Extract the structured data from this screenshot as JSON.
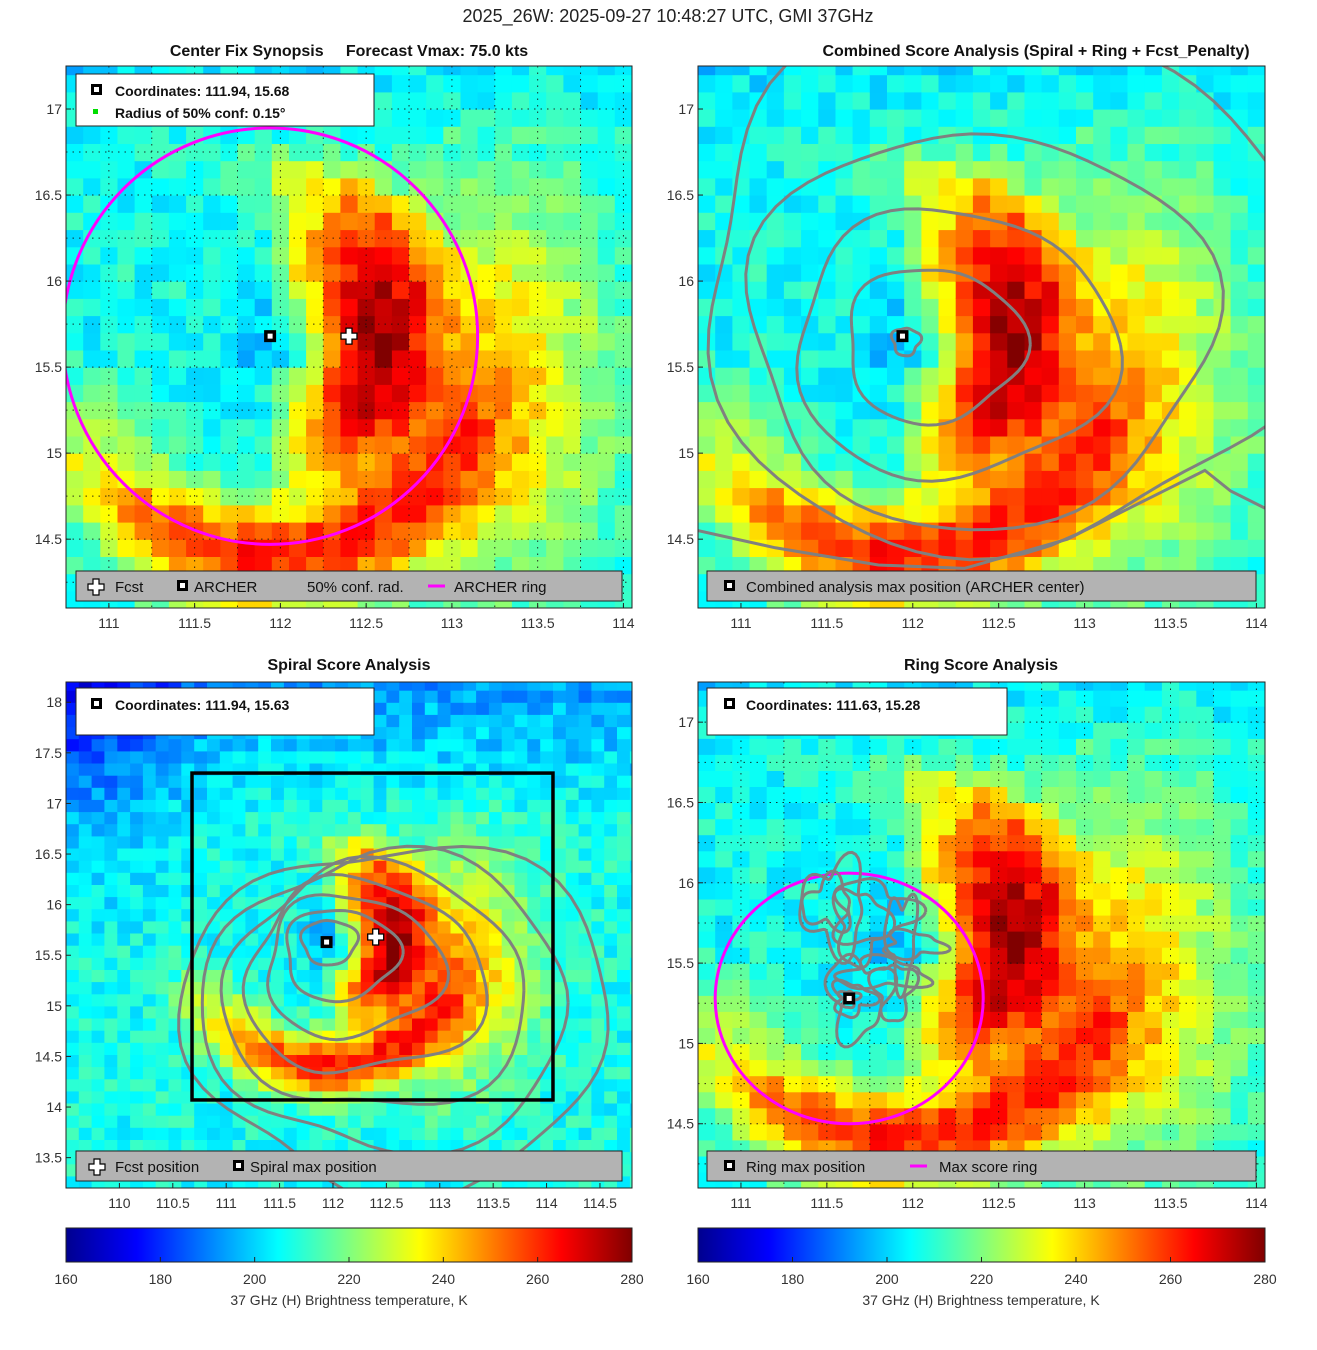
{
  "suptitle": "2025_26W: 2025-09-27 10:48:27 UTC, GMI 37GHz",
  "colors": {
    "magenta": "#ff00ff",
    "contour": "#808080",
    "legend_bg": "#b3b3b3",
    "grid": "#1a1a1a"
  },
  "colorbar": {
    "label": "37 GHz (H) Brightness temperature, K",
    "ticks": [
      "160",
      "180",
      "200",
      "220",
      "240",
      "260",
      "280"
    ],
    "min": 160,
    "max": 280
  },
  "chart_data": [
    {
      "type": "heatmap",
      "title": "Center Fix Synopsis     Forecast Vmax: 75.0 kts",
      "xlim": [
        110.75,
        114.05
      ],
      "ylim": [
        14.1,
        17.25
      ],
      "xticks": [
        "111",
        "111.5",
        "112",
        "112.5",
        "113",
        "113.5",
        "114"
      ],
      "yticks": [
        "14.5",
        "15",
        "15.5",
        "16",
        "16.5",
        "17"
      ],
      "grid": true,
      "info_lines": [
        "Coordinates: 111.94, 15.68",
        "Radius of 50% conf: 0.15°"
      ],
      "legend": [
        "Fcst",
        "ARCHER",
        "50% conf. rad.",
        "ARCHER ring"
      ],
      "archer_center": [
        111.94,
        15.68
      ],
      "fcst_position": [
        112.4,
        15.68
      ],
      "ring": {
        "center": [
          111.94,
          15.68
        ],
        "radius_deg": 1.21
      }
    },
    {
      "type": "heatmap",
      "title": "Combined Score Analysis (Spiral + Ring + Fcst_Penalty)",
      "xlim": [
        110.75,
        114.05
      ],
      "ylim": [
        14.1,
        17.25
      ],
      "xticks": [
        "111",
        "111.5",
        "112",
        "112.5",
        "113",
        "113.5",
        "114"
      ],
      "yticks": [
        "14.5",
        "15",
        "15.5",
        "16",
        "16.5",
        "17"
      ],
      "grid": false,
      "legend": [
        "Combined analysis max position (ARCHER center)"
      ],
      "max_position": [
        111.94,
        15.68
      ],
      "contour_levels": 6
    },
    {
      "type": "heatmap",
      "title": "Spiral Score Analysis",
      "xlim": [
        109.5,
        114.8
      ],
      "ylim": [
        13.2,
        18.2
      ],
      "xticks": [
        "110",
        "110.5",
        "111",
        "111.5",
        "112",
        "112.5",
        "113",
        "113.5",
        "114",
        "114.5"
      ],
      "yticks": [
        "13.5",
        "14",
        "14.5",
        "15",
        "15.5",
        "16",
        "16.5",
        "17",
        "17.5",
        "18"
      ],
      "grid": false,
      "info_lines": [
        "Coordinates: 111.94, 15.63"
      ],
      "legend": [
        "Fcst position",
        "Spiral max position"
      ],
      "max_position": [
        111.94,
        15.63
      ],
      "fcst_position": [
        112.4,
        15.68
      ],
      "search_box": {
        "x": [
          110.68,
          114.06
        ],
        "y": [
          14.07,
          17.3
        ]
      }
    },
    {
      "type": "heatmap",
      "title": "Ring Score Analysis",
      "xlim": [
        110.75,
        114.05
      ],
      "ylim": [
        14.1,
        17.25
      ],
      "xticks": [
        "111",
        "111.5",
        "112",
        "112.5",
        "113",
        "113.5",
        "114"
      ],
      "yticks": [
        "14.5",
        "15",
        "15.5",
        "16",
        "16.5",
        "17"
      ],
      "grid": true,
      "info_lines": [
        "Coordinates: 111.63, 15.28"
      ],
      "legend": [
        "Ring max position",
        "Max score ring"
      ],
      "max_position": [
        111.63,
        15.28
      ],
      "ring": {
        "center": [
          111.63,
          15.28
        ],
        "radius_deg": 0.78
      }
    }
  ]
}
